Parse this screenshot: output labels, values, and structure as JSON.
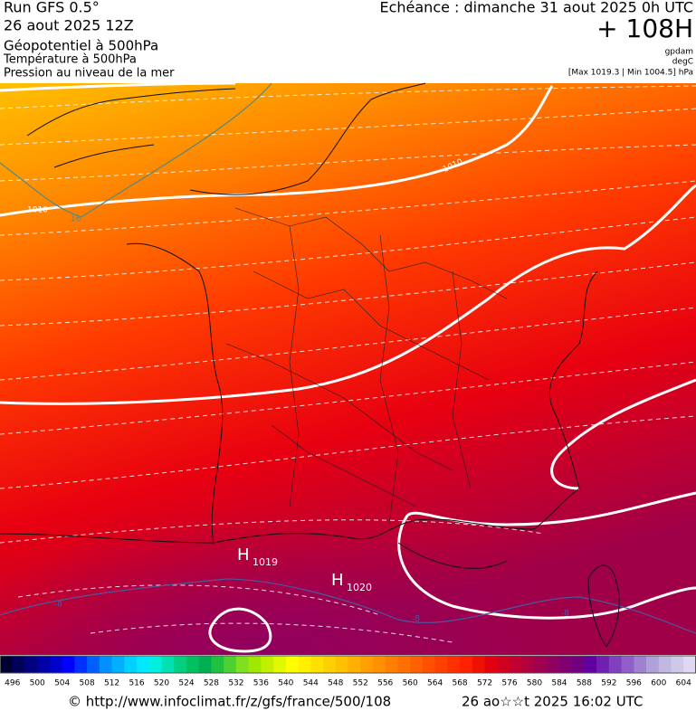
{
  "header": {
    "run": "Run GFS 0.5°",
    "date": "26 aout 2025 12Z",
    "field1": "Géopotentiel à 500hPa",
    "field2": "Température à 500hPa",
    "field3": "Pression au niveau de la mer",
    "echeance": "Echéance : dimanche 31 aout 2025 0h UTC",
    "offset": "+ 108H",
    "unit1": "gpdam",
    "unit2": "degC",
    "range": "[Max 1019.3 | Min 1004.5] hPa"
  },
  "map": {
    "labels": {
      "h": "H",
      "p1019": "1019",
      "p1020": "1020",
      "iso_left": "1010",
      "iso_right": "1010",
      "temp16": "16",
      "temp_m8a": "-8",
      "temp_m8b": "-8",
      "temp_m8c": "-8"
    }
  },
  "colorbar": {
    "ticks": [
      496,
      500,
      504,
      508,
      512,
      516,
      520,
      524,
      528,
      532,
      536,
      540,
      544,
      548,
      552,
      556,
      560,
      564,
      568,
      572,
      576,
      580,
      584,
      588,
      592,
      596,
      600,
      604
    ],
    "colors": [
      "#000033",
      "#00005a",
      "#000080",
      "#0000a6",
      "#0000cc",
      "#0000ff",
      "#0030ff",
      "#0060ff",
      "#0090ff",
      "#00b0ff",
      "#00d0ff",
      "#00e8ff",
      "#00f0e0",
      "#00e0b0",
      "#00d080",
      "#00c060",
      "#00b050",
      "#20c040",
      "#50d030",
      "#80e020",
      "#a0e800",
      "#c0f000",
      "#e0f800",
      "#ffff00",
      "#fff000",
      "#ffe000",
      "#ffd000",
      "#ffc000",
      "#ffb000",
      "#ffa000",
      "#ff9000",
      "#ff8000",
      "#ff7000",
      "#ff6000",
      "#ff5000",
      "#ff4000",
      "#ff3000",
      "#ff2000",
      "#f01000",
      "#e00010",
      "#d00020",
      "#c00030",
      "#b00040",
      "#a00050",
      "#900060",
      "#800070",
      "#700080",
      "#6000a0",
      "#7020b0",
      "#8040c0",
      "#9060c8",
      "#a080d0",
      "#b0a0d8",
      "#c0b8e0",
      "#d0c8e8",
      "#e0d8f0"
    ]
  },
  "footer": {
    "url": "© http://www.infoclimat.fr/z/gfs/france/500/108",
    "time": "26 ao☆☆t 2025 16:02 UTC"
  }
}
